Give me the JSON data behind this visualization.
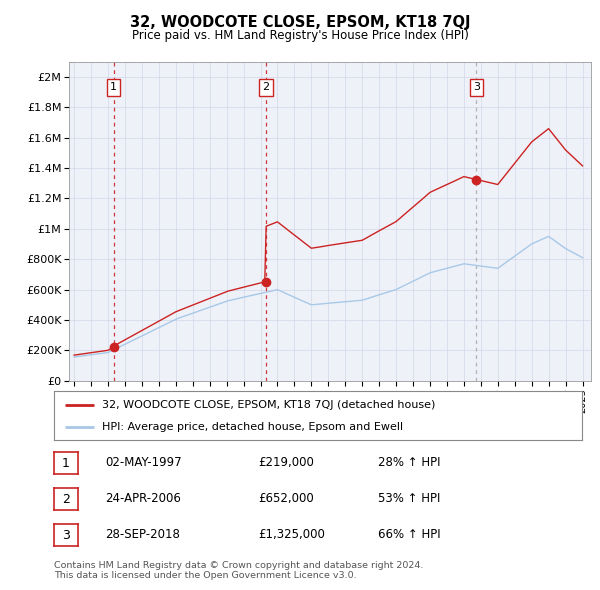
{
  "title": "32, WOODCOTE CLOSE, EPSOM, KT18 7QJ",
  "subtitle": "Price paid vs. HM Land Registry's House Price Index (HPI)",
  "footer": "Contains HM Land Registry data © Crown copyright and database right 2024.\nThis data is licensed under the Open Government Licence v3.0.",
  "legend_line1": "32, WOODCOTE CLOSE, EPSOM, KT18 7QJ (detached house)",
  "legend_line2": "HPI: Average price, detached house, Epsom and Ewell",
  "hpi_color": "#a8c8e8",
  "price_color": "#cc2222",
  "dashed_color_red": "#cc2222",
  "dashed_color_grey": "#999999",
  "sale_points": [
    {
      "year": 1997.33,
      "price": 219000,
      "label": "1",
      "dash_color": "#cc2222"
    },
    {
      "year": 2006.31,
      "price": 652000,
      "label": "2",
      "dash_color": "#cc2222"
    },
    {
      "year": 2018.74,
      "price": 1325000,
      "label": "3",
      "dash_color": "#aaaaaa"
    }
  ],
  "table": [
    {
      "num": "1",
      "date": "02-MAY-1997",
      "price": "£219,000",
      "hpi": "28% ↑ HPI"
    },
    {
      "num": "2",
      "date": "24-APR-2006",
      "price": "£652,000",
      "hpi": "53% ↑ HPI"
    },
    {
      "num": "3",
      "date": "28-SEP-2018",
      "price": "£1,325,000",
      "hpi": "66% ↑ HPI"
    }
  ],
  "ylim": [
    0,
    2100000
  ],
  "yticks": [
    0,
    200000,
    400000,
    600000,
    800000,
    1000000,
    1200000,
    1400000,
    1600000,
    1800000,
    2000000
  ],
  "ytick_labels": [
    "£0",
    "£200K",
    "£400K",
    "£600K",
    "£800K",
    "£1M",
    "£1.2M",
    "£1.4M",
    "£1.6M",
    "£1.8M",
    "£2M"
  ],
  "xlim": [
    1994.7,
    2025.5
  ],
  "xticks": [
    1995,
    1996,
    1997,
    1998,
    1999,
    2000,
    2001,
    2002,
    2003,
    2004,
    2005,
    2006,
    2007,
    2008,
    2009,
    2010,
    2011,
    2012,
    2013,
    2014,
    2015,
    2016,
    2017,
    2018,
    2019,
    2020,
    2021,
    2022,
    2023,
    2024,
    2025
  ]
}
